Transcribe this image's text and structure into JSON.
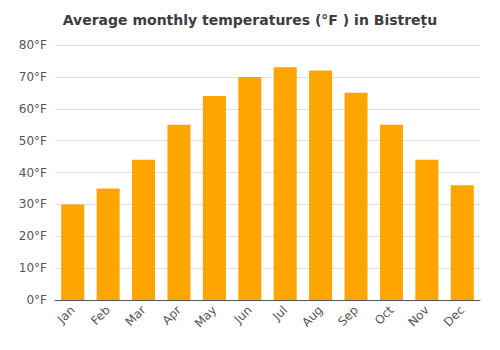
{
  "chart_data": {
    "type": "bar",
    "title": "Average monthly temperatures (°F ) in Bistrețu",
    "categories": [
      "Jan",
      "Feb",
      "Mar",
      "Apr",
      "May",
      "Jun",
      "Jul",
      "Aug",
      "Sep",
      "Oct",
      "Nov",
      "Dec"
    ],
    "values": [
      30,
      35,
      44,
      55,
      64,
      70,
      73,
      72,
      65,
      55,
      44,
      36
    ],
    "color": "#FFA500",
    "ylim": [
      0,
      80
    ],
    "yticks": [
      {
        "value": 0,
        "label": "0°F"
      },
      {
        "value": 10,
        "label": "10°F"
      },
      {
        "value": 20,
        "label": "20°F"
      },
      {
        "value": 30,
        "label": "30°F"
      },
      {
        "value": 40,
        "label": "40°F"
      },
      {
        "value": 50,
        "label": "50°F"
      },
      {
        "value": 60,
        "label": "60°F"
      },
      {
        "value": 70,
        "label": "70°F"
      },
      {
        "value": 80,
        "label": "80°F"
      }
    ],
    "grid": true
  }
}
